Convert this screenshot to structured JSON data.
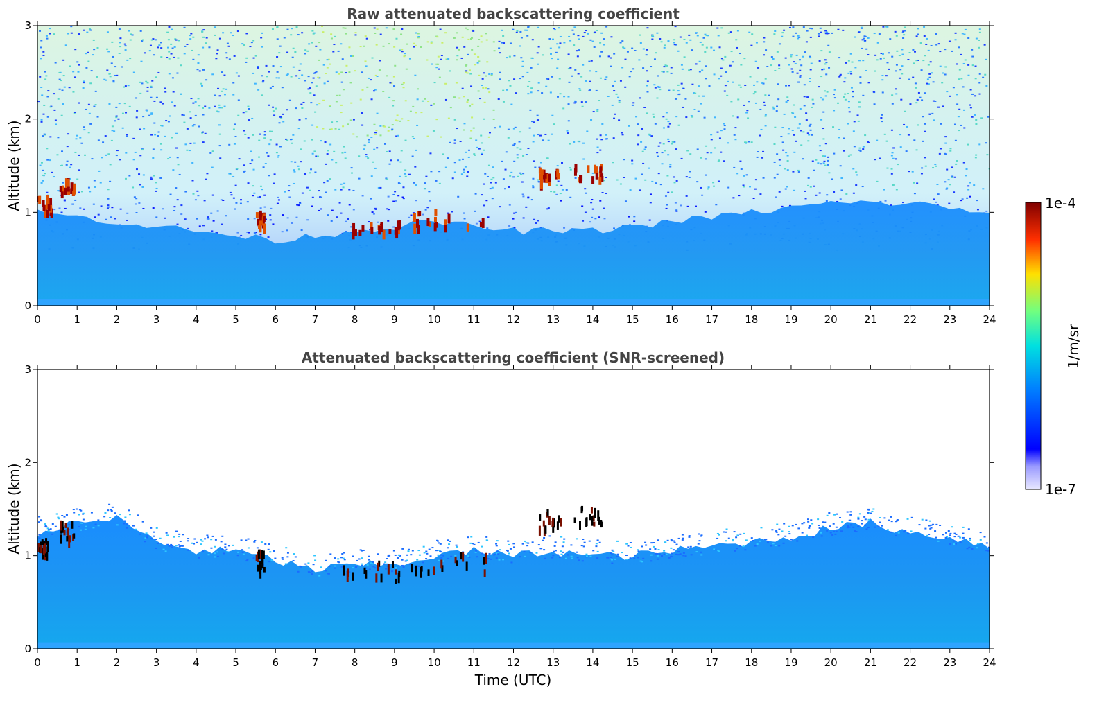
{
  "chart_data": [
    {
      "type": "heatmap",
      "title": "Raw attenuated backscattering coefficient",
      "xlabel": "",
      "ylabel": "Altitude (km)",
      "xlim": [
        0,
        24
      ],
      "ylim": [
        0,
        3
      ],
      "xticks": [
        "0",
        "1",
        "2",
        "3",
        "4",
        "5",
        "6",
        "7",
        "8",
        "9",
        "10",
        "11",
        "12",
        "13",
        "14",
        "15",
        "16",
        "17",
        "18",
        "19",
        "20",
        "21",
        "22",
        "23",
        "24"
      ],
      "yticks": [
        "0",
        "1",
        "2",
        "3"
      ],
      "grid": false,
      "features": {
        "boundary_layer_top_km": [
          [
            0,
            1.0
          ],
          [
            2,
            0.9
          ],
          [
            4,
            0.8
          ],
          [
            6,
            0.7
          ],
          [
            8,
            0.8
          ],
          [
            10,
            0.9
          ],
          [
            12,
            0.8
          ],
          [
            14,
            0.8
          ],
          [
            16,
            0.9
          ],
          [
            18,
            1.0
          ],
          [
            20,
            1.1
          ],
          [
            22,
            1.1
          ],
          [
            24,
            1.0
          ]
        ],
        "cloud_segments": [
          {
            "t_start": 0.0,
            "t_end": 0.35,
            "alt_km": 1.1
          },
          {
            "t_start": 0.55,
            "t_end": 0.9,
            "alt_km": 1.3
          },
          {
            "t_start": 5.5,
            "t_end": 5.7,
            "alt_km": 0.97
          },
          {
            "t_start": 7.7,
            "t_end": 9.1,
            "alt_km": 0.85
          },
          {
            "t_start": 9.4,
            "t_end": 11.3,
            "alt_km": 0.95
          },
          {
            "t_start": 12.6,
            "t_end": 13.2,
            "alt_km": 1.4
          },
          {
            "t_start": 13.5,
            "t_end": 14.2,
            "alt_km": 1.45
          }
        ]
      }
    },
    {
      "type": "heatmap",
      "title": "Attenuated backscattering coefficient (SNR-screened)",
      "xlabel": "Time (UTC)",
      "ylabel": "Altitude (km)",
      "xlim": [
        0,
        24
      ],
      "ylim": [
        0,
        3
      ],
      "xticks": [
        "0",
        "1",
        "2",
        "3",
        "4",
        "5",
        "6",
        "7",
        "8",
        "9",
        "10",
        "11",
        "12",
        "13",
        "14",
        "15",
        "16",
        "17",
        "18",
        "19",
        "20",
        "21",
        "22",
        "23",
        "24"
      ],
      "yticks": [
        "0",
        "1",
        "2",
        "3"
      ],
      "grid": false,
      "features": {
        "signal_top_km": [
          [
            0,
            1.25
          ],
          [
            1,
            1.35
          ],
          [
            2,
            1.4
          ],
          [
            3,
            1.15
          ],
          [
            4,
            1.05
          ],
          [
            5,
            1.05
          ],
          [
            6,
            0.95
          ],
          [
            7,
            0.85
          ],
          [
            8,
            0.9
          ],
          [
            9,
            0.9
          ],
          [
            10,
            1.0
          ],
          [
            11,
            1.05
          ],
          [
            12,
            1.0
          ],
          [
            13,
            1.05
          ],
          [
            14,
            1.0
          ],
          [
            15,
            1.0
          ],
          [
            16,
            1.05
          ],
          [
            17,
            1.1
          ],
          [
            18,
            1.15
          ],
          [
            19,
            1.2
          ],
          [
            20,
            1.3
          ],
          [
            21,
            1.35
          ],
          [
            22,
            1.25
          ],
          [
            23,
            1.2
          ],
          [
            24,
            1.1
          ]
        ]
      }
    }
  ],
  "colorbar": {
    "label": "1/m/sr",
    "max_label": "1e-4",
    "min_label": "1e-7",
    "scale": "log",
    "colormap": "jet"
  }
}
